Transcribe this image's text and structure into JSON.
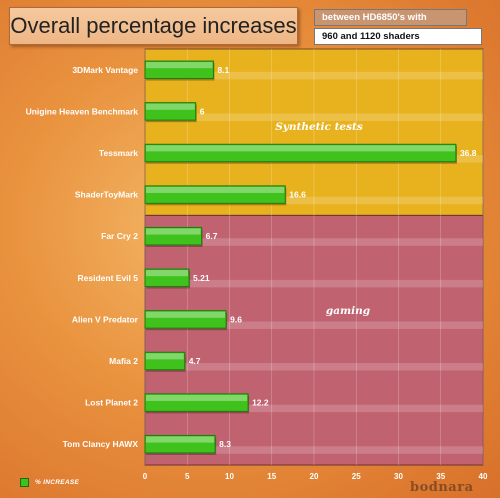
{
  "header": {
    "title": "Overall percentage increases",
    "subtitle_line1": "between HD6850's with",
    "subtitle_line2": "960 and 1120 shaders"
  },
  "legend": {
    "label": "% INCREASE",
    "color": "#3fc21c"
  },
  "watermark": "bodnara",
  "colors": {
    "bar": "#3fc21c",
    "synthetic_bg": "#e8b21e",
    "gaming_bg": "#c06270",
    "accent_title_bg": "#f4c397"
  },
  "chart_data": {
    "type": "bar",
    "orientation": "horizontal",
    "categories": [
      "3DMark Vantage",
      "Unigine Heaven Benchmark",
      "Tessmark",
      "ShaderToyMark",
      "Far Cry 2",
      "Resident Evil 5",
      "Alien V Predator",
      "Mafia 2",
      "Lost Planet 2",
      "Tom Clancy HAWX"
    ],
    "values": [
      8.1,
      6,
      36.8,
      16.6,
      6.7,
      5.21,
      9.6,
      4.7,
      12.2,
      8.3
    ],
    "value_labels": [
      "8.1",
      "6",
      "36.8",
      "16.6",
      "6.7",
      "5.21",
      "9.6",
      "4.7",
      "12.2",
      "8.3"
    ],
    "xlim": [
      0,
      40
    ],
    "xticks": [
      0,
      5,
      10,
      15,
      20,
      25,
      30,
      35,
      40
    ],
    "xlabel": "",
    "ylabel": "",
    "groups": [
      {
        "label": "Synthetic tests",
        "categories": [
          "3DMark Vantage",
          "Unigine Heaven Benchmark",
          "Tessmark",
          "ShaderToyMark"
        ]
      },
      {
        "label": "gaming",
        "categories": [
          "Far Cry 2",
          "Resident Evil 5",
          "Alien V Predator",
          "Mafia 2",
          "Lost Planet 2",
          "Tom Clancy HAWX"
        ]
      }
    ],
    "legend": {
      "entries": [
        "% INCREASE"
      ],
      "position": "bottom-left"
    },
    "grid": true
  }
}
